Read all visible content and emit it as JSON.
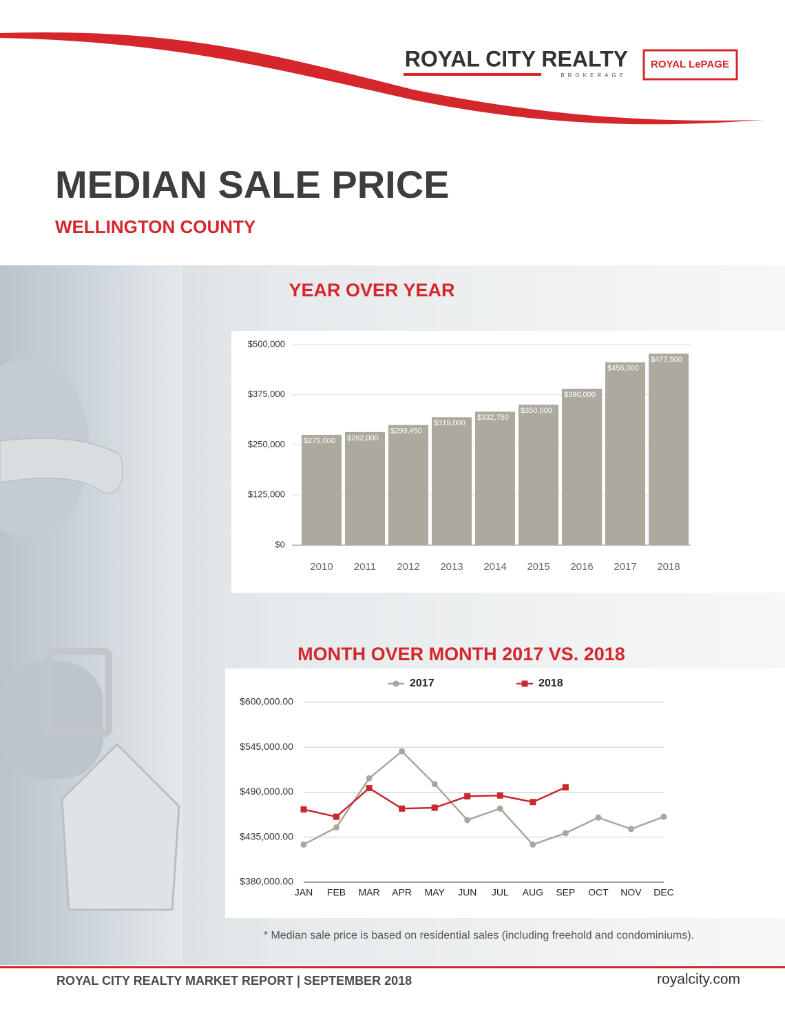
{
  "header": {
    "logo": "ROYAL CITY REALTY",
    "logo_sub": "BROKERAGE",
    "partner": "ROYAL LePAGE"
  },
  "title": "MEDIAN SALE PRICE",
  "subtitle": "WELLINGTON COUNTY",
  "chart_data": [
    {
      "type": "bar",
      "title": "YEAR OVER YEAR",
      "categories": [
        "2010",
        "2011",
        "2012",
        "2013",
        "2014",
        "2015",
        "2016",
        "2017",
        "2018"
      ],
      "values": [
        275000,
        282000,
        299450,
        319000,
        332750,
        350000,
        390000,
        456000,
        477500
      ],
      "value_labels": [
        "$275,000",
        "$282,000",
        "$299,450",
        "$319,000",
        "$332,750",
        "$350,000",
        "$390,000",
        "$456,000",
        "$477,500"
      ],
      "color": "#aca99f",
      "ylim": [
        0,
        500000
      ],
      "yticks": [
        {
          "value": 0,
          "label": "$0"
        },
        {
          "value": 125000,
          "label": "$125,000"
        },
        {
          "value": 250000,
          "label": "$250,000"
        },
        {
          "value": 375000,
          "label": "$375,000"
        },
        {
          "value": 500000,
          "label": "$500,000"
        }
      ],
      "grid": true
    },
    {
      "type": "line",
      "title": "MONTH OVER MONTH 2017 VS. 2018",
      "categories": [
        "JAN",
        "FEB",
        "MAR",
        "APR",
        "MAY",
        "JUN",
        "JUL",
        "AUG",
        "SEP",
        "OCT",
        "NOV",
        "DEC"
      ],
      "series": [
        {
          "name": "2017",
          "color": "#a9a79d",
          "marker": "circle",
          "values": [
            426000,
            447000,
            507000,
            540000,
            500000,
            456000,
            470000,
            426000,
            440000,
            459000,
            445000,
            460000
          ]
        },
        {
          "name": "2018",
          "color": "#c8282e",
          "marker": "square",
          "values": [
            469000,
            460000,
            495000,
            470000,
            471000,
            485000,
            486000,
            478000,
            496000,
            null,
            null,
            null
          ]
        }
      ],
      "ylim": [
        380000,
        600000
      ],
      "yticks": [
        {
          "value": 380000,
          "label": "$380,000.00"
        },
        {
          "value": 435000,
          "label": "$435,000.00"
        },
        {
          "value": 490000,
          "label": "$490,000.00"
        },
        {
          "value": 545000,
          "label": "$545,000.00"
        },
        {
          "value": 600000,
          "label": "$600,000.00"
        }
      ],
      "grid": true,
      "legend": "top"
    }
  ],
  "footnote": "* Median sale price is based on residential sales (including freehold and condominiums).",
  "footer": {
    "left": "ROYAL CITY REALTY MARKET REPORT | SEPTEMBER 2018",
    "right": "royalcity.com"
  }
}
